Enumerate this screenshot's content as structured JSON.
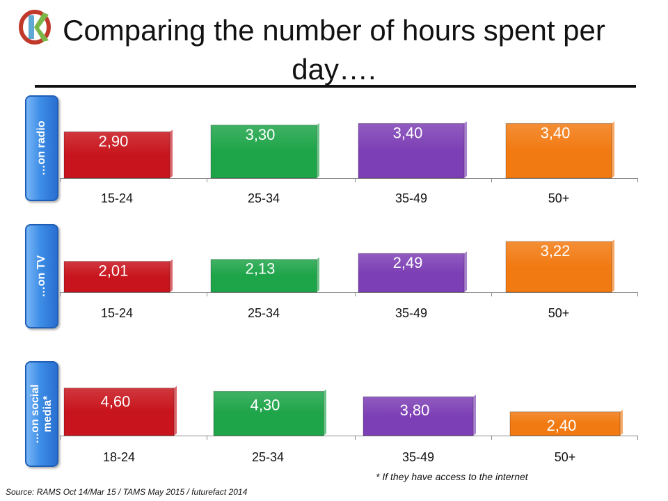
{
  "title": "Comparing the number of hours spent per day….",
  "logo": {
    "letter": "K",
    "colors": [
      "#c0392b",
      "#5fa8d3",
      "#7ab648"
    ]
  },
  "colors": [
    "#c8141c",
    "#1ea449",
    "#7d3fb5",
    "#f27a12"
  ],
  "chart_data": [
    {
      "type": "bar",
      "panel_label": "…on radio",
      "categories": [
        "15-24",
        "25-34",
        "35-49",
        "50+"
      ],
      "values": [
        2.9,
        3.3,
        3.4,
        3.4
      ],
      "value_labels": [
        "2,90",
        "3,30",
        "3,40",
        "3,40"
      ]
    },
    {
      "type": "bar",
      "panel_label": "…on TV",
      "categories": [
        "15-24",
        "25-34",
        "35-49",
        "50+"
      ],
      "values": [
        2.01,
        2.13,
        2.49,
        3.22
      ],
      "value_labels": [
        "2,01",
        "2,13",
        "2,49",
        "3,22"
      ]
    },
    {
      "type": "bar",
      "panel_label": "…on social media*",
      "categories": [
        "18-24",
        "25-34",
        "35-49",
        "50+"
      ],
      "values": [
        4.6,
        4.3,
        3.8,
        2.4
      ],
      "value_labels": [
        "4,60",
        "4,30",
        "3,80",
        "2,40"
      ]
    }
  ],
  "footnote": "* If they have access to the internet",
  "source": "Source: RAMS  Oct 14/Mar 15 / TAMS May 2015 / futurefact 2014"
}
